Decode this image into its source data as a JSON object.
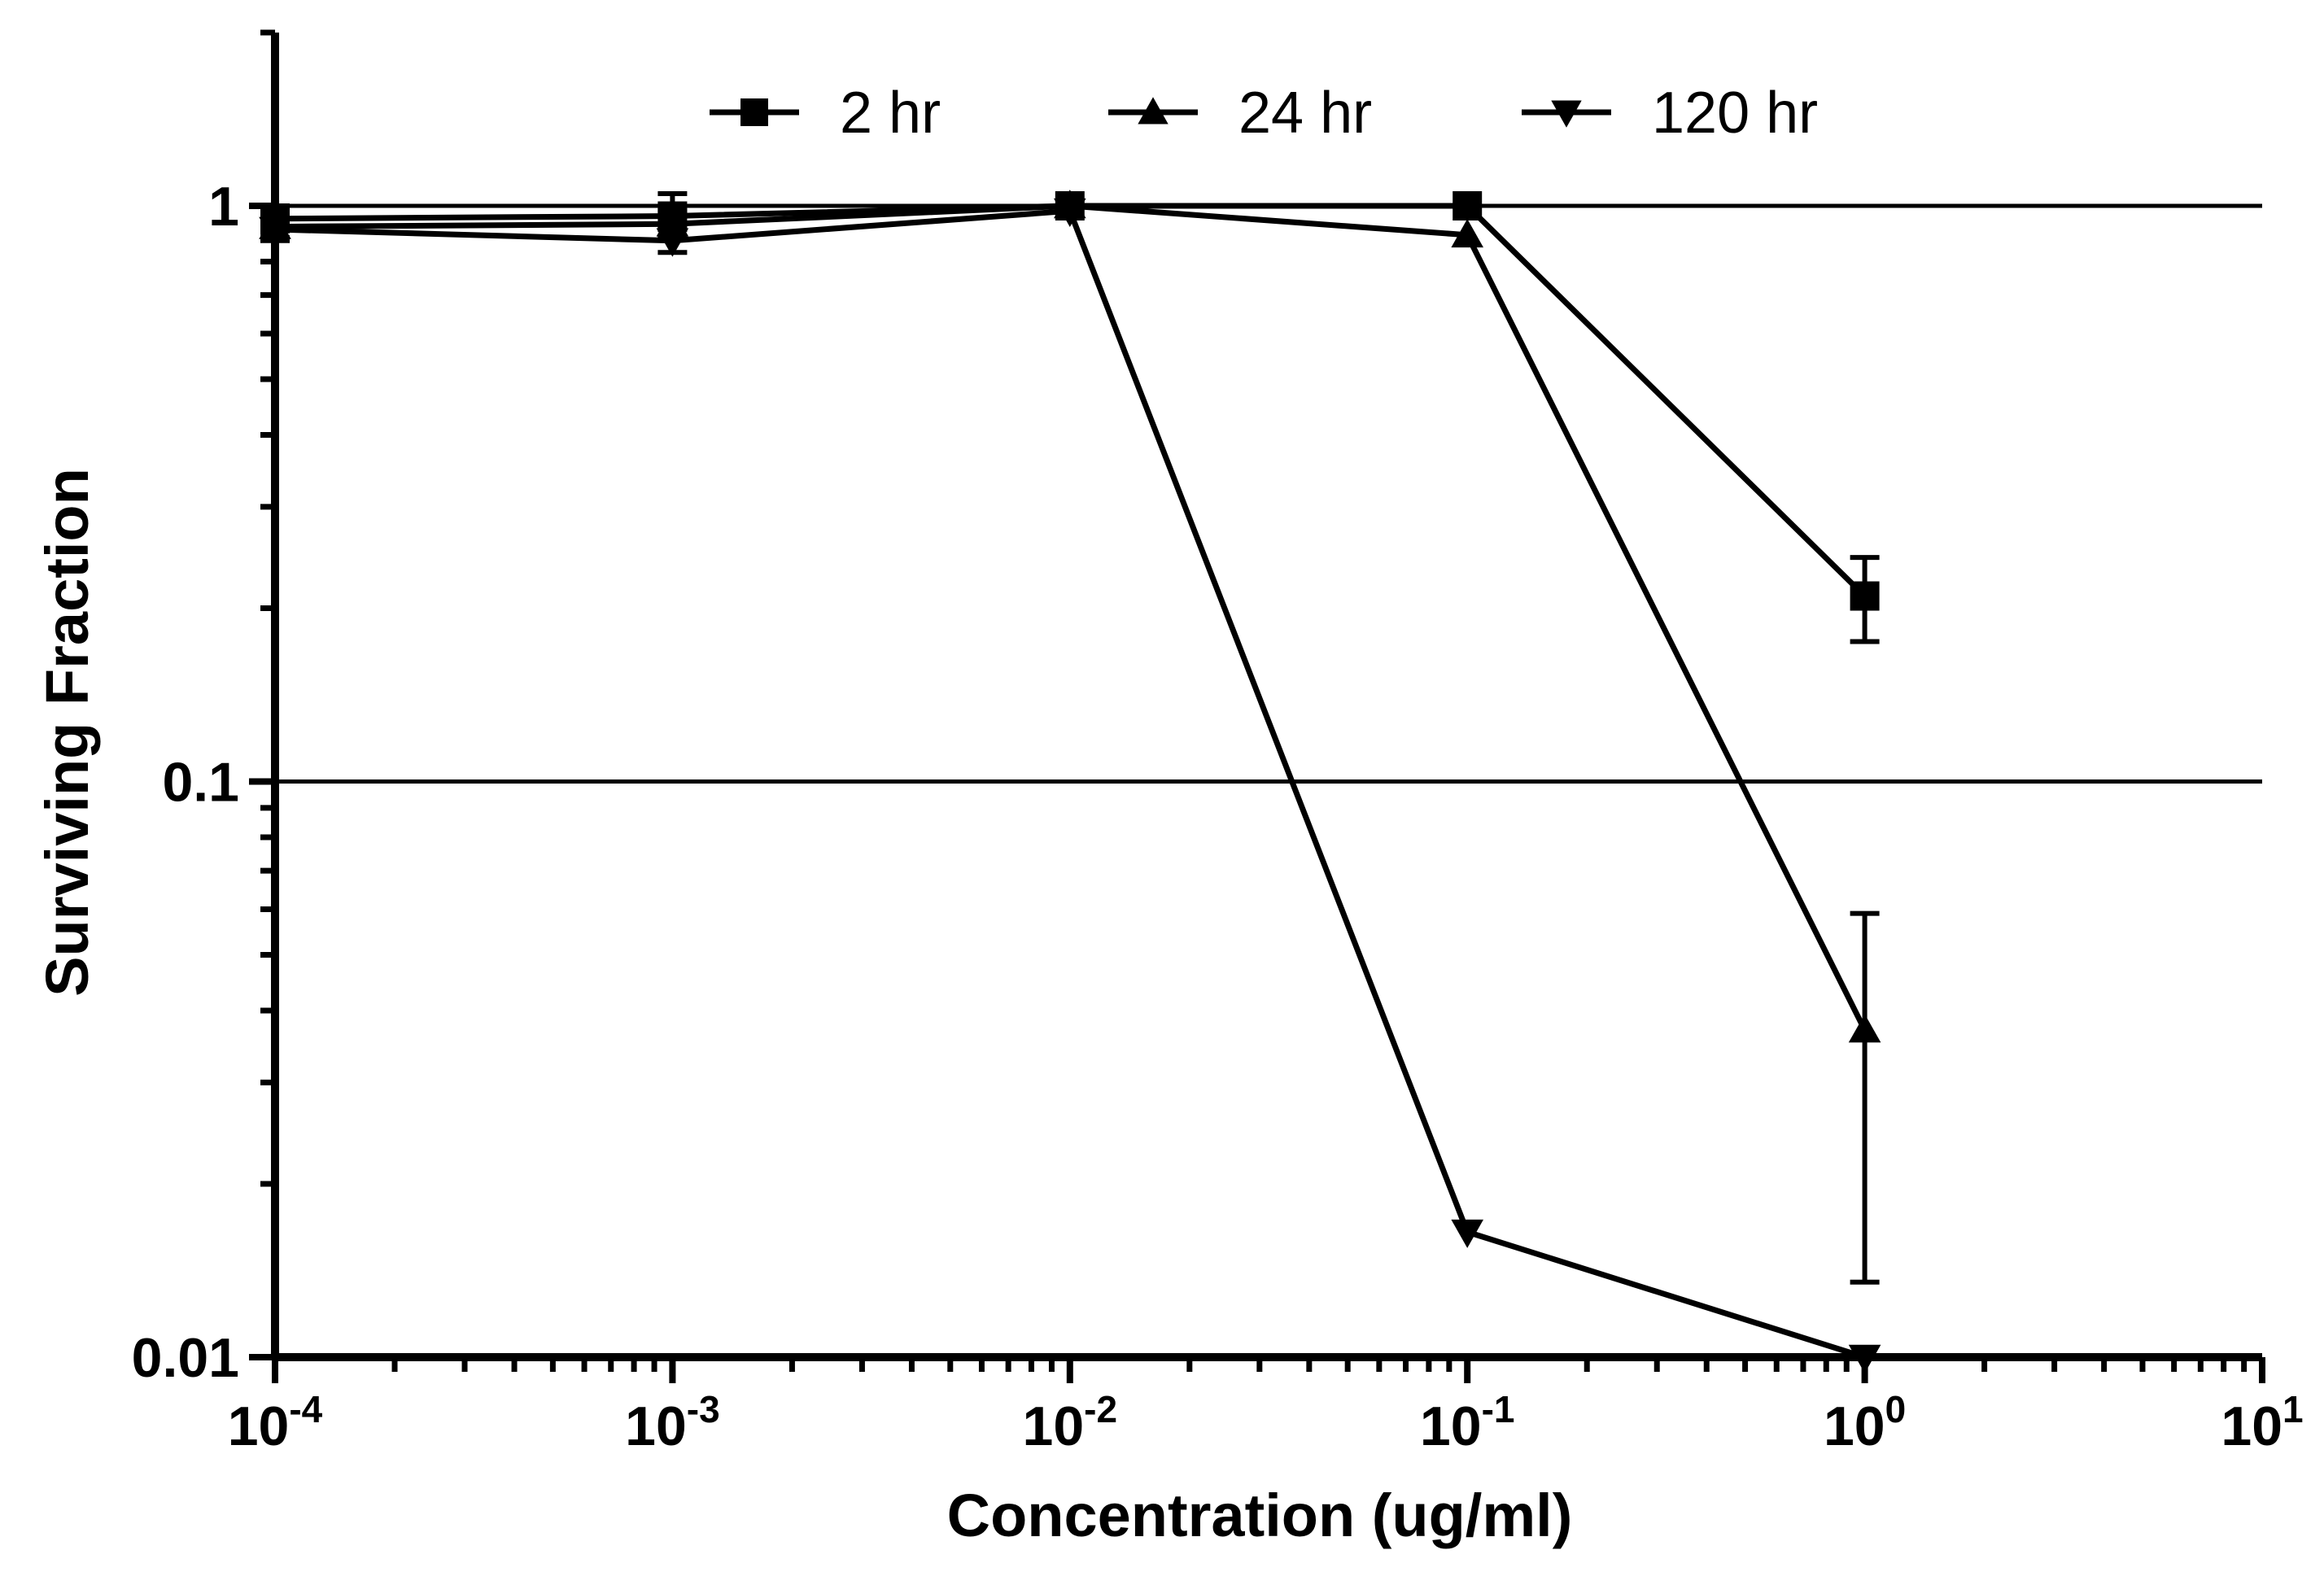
{
  "chart_data": {
    "type": "line",
    "xlabel": "Concentration (ug/ml)",
    "ylabel": "Surviving Fraction",
    "x_scale": "log",
    "y_scale": "log",
    "xlim": [
      0.0001,
      10
    ],
    "ylim": [
      0.01,
      2
    ],
    "x_ticks": [
      {
        "value": 0.0001,
        "base": "10",
        "exp": "-4"
      },
      {
        "value": 0.001,
        "base": "10",
        "exp": "-3"
      },
      {
        "value": 0.01,
        "base": "10",
        "exp": "-2"
      },
      {
        "value": 0.1,
        "base": "10",
        "exp": "-1"
      },
      {
        "value": 1,
        "base": "10",
        "exp": "0"
      },
      {
        "value": 10,
        "base": "10",
        "exp": "1"
      }
    ],
    "y_ticks": [
      {
        "value": 0.01,
        "label": "0.01"
      },
      {
        "value": 0.1,
        "label": "0.1"
      },
      {
        "value": 1,
        "label": "1"
      }
    ],
    "reference_lines": [
      1,
      0.1
    ],
    "legend_position": "top",
    "series": [
      {
        "name": "2 hr",
        "marker": "square",
        "x": [
          0.0001,
          0.001,
          0.01,
          0.1,
          1
        ],
        "y": [
          0.95,
          0.96,
          1.0,
          1.0,
          0.21
        ],
        "err_low": [
          0.88,
          0.88,
          1.0,
          1.0,
          0.175
        ],
        "err_high": [
          1.0,
          1.05,
          1.0,
          1.0,
          0.245
        ]
      },
      {
        "name": "24 hr",
        "marker": "triangle-up",
        "x": [
          0.0001,
          0.001,
          0.01,
          0.1,
          1
        ],
        "y": [
          0.92,
          0.93,
          1.0,
          0.89,
          0.037
        ],
        "err_low": [
          0.88,
          0.88,
          1.0,
          0.89,
          0.0135
        ],
        "err_high": [
          0.96,
          0.98,
          1.0,
          0.89,
          0.059
        ]
      },
      {
        "name": "120 hr",
        "marker": "triangle-down",
        "x": [
          0.0001,
          0.001,
          0.01,
          0.1,
          1
        ],
        "y": [
          0.91,
          0.87,
          0.98,
          0.0165,
          0.01
        ],
        "err_low": [
          0.87,
          0.83,
          0.98,
          0.0165,
          0.01
        ],
        "err_high": [
          0.95,
          0.91,
          0.98,
          0.0165,
          0.01
        ]
      }
    ]
  }
}
